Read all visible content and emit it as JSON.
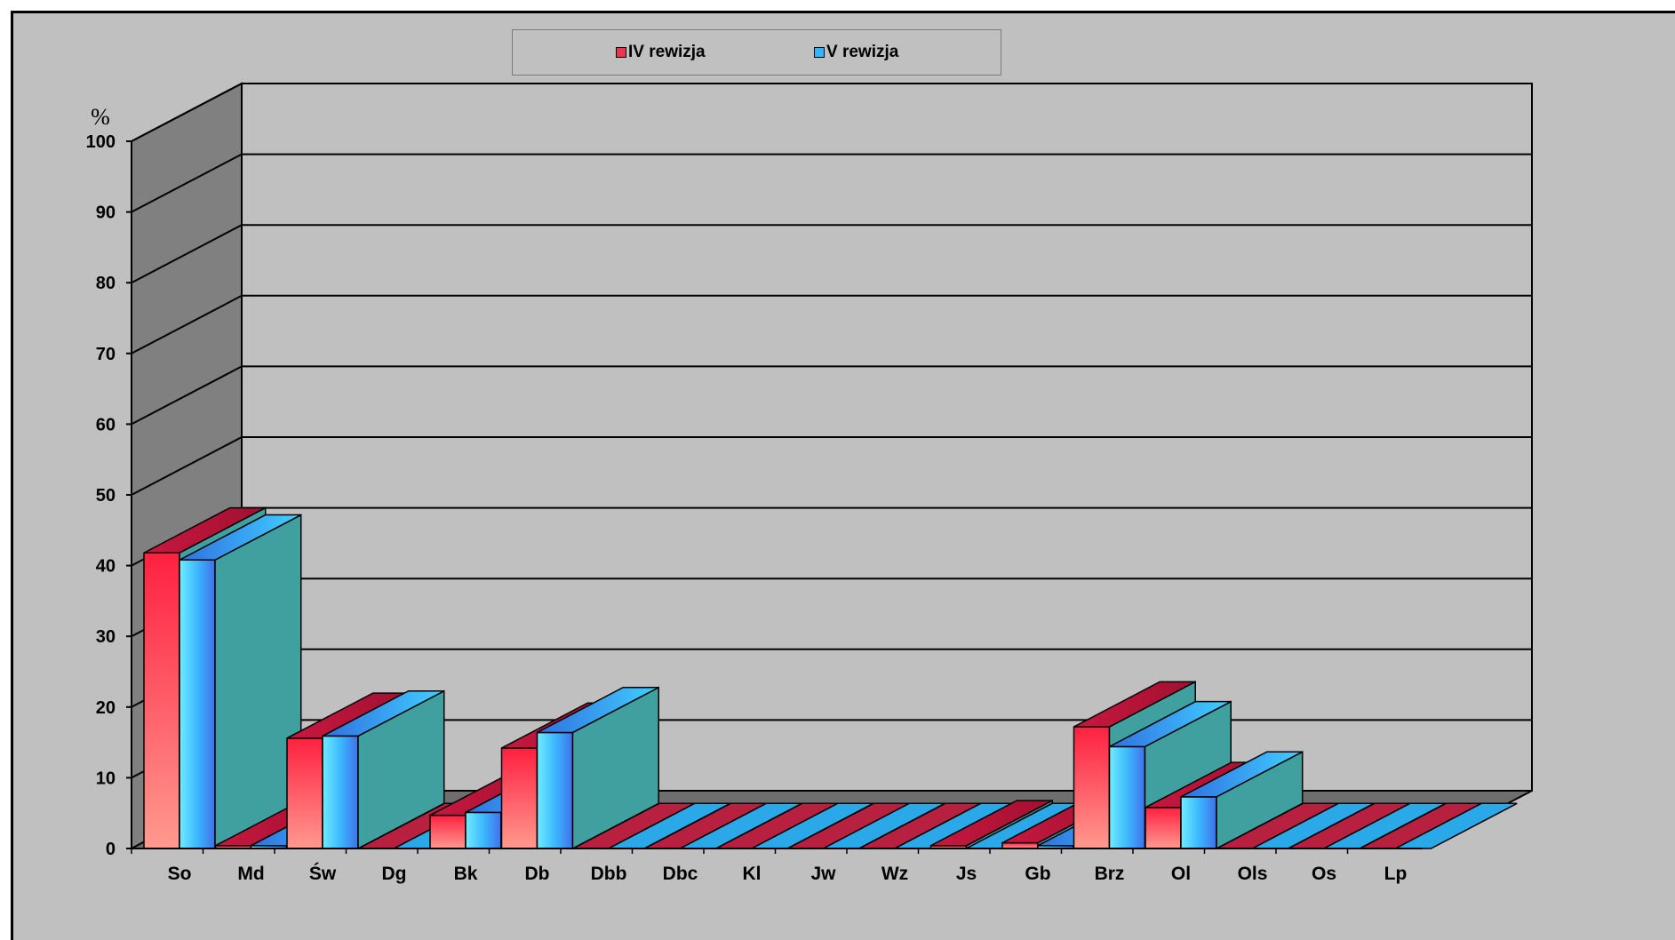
{
  "chart_data": {
    "type": "bar",
    "title": "",
    "xlabel": "",
    "ylabel": "%",
    "ylim": [
      0,
      100
    ],
    "yticks": [
      "0",
      "10",
      "20",
      "30",
      "40",
      "50",
      "60",
      "70",
      "80",
      "90",
      "100"
    ],
    "grid": true,
    "legend_position": "top-center",
    "categories": [
      "So",
      "Md",
      "Św",
      "Dg",
      "Bk",
      "Db",
      "Dbb",
      "Dbc",
      "Kl",
      "Jw",
      "Wz",
      "Js",
      "Gb",
      "Brz",
      "Ol",
      "Ols",
      "Os",
      "Lp"
    ],
    "series": [
      {
        "name": "IV rewizja",
        "color": "#e8384f",
        "values": [
          41.8,
          0.4,
          15.6,
          0,
          4.7,
          14.2,
          0,
          0,
          0,
          0,
          0,
          0.4,
          0.8,
          17.2,
          5.8,
          0,
          0,
          0
        ]
      },
      {
        "name": "V rewizja",
        "color": "#33b5ff",
        "values": [
          40.8,
          0.4,
          15.9,
          0,
          5.1,
          16.4,
          0,
          0,
          0,
          0,
          0,
          0,
          0.4,
          14.4,
          7.3,
          0,
          0,
          0
        ]
      }
    ]
  },
  "colors": {
    "background": "#c0c0c0",
    "side_wall": "#808080",
    "floor": "#6e6e6e",
    "bar_side": "#40a0a0"
  }
}
